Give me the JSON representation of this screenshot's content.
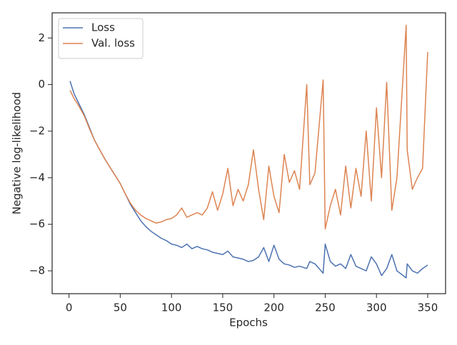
{
  "chart_data": {
    "type": "line",
    "xlabel": "Epochs",
    "ylabel": "Negative log-likelihood",
    "x": [
      1,
      5,
      10,
      15,
      20,
      25,
      30,
      35,
      40,
      45,
      50,
      55,
      60,
      65,
      70,
      75,
      80,
      85,
      90,
      95,
      100,
      105,
      110,
      115,
      120,
      125,
      130,
      135,
      140,
      145,
      150,
      155,
      160,
      165,
      170,
      175,
      180,
      185,
      190,
      195,
      200,
      205,
      210,
      215,
      220,
      225,
      232,
      235,
      240,
      248,
      250,
      255,
      260,
      265,
      270,
      275,
      280,
      285,
      290,
      295,
      300,
      305,
      310,
      315,
      320,
      329,
      330,
      335,
      340,
      345,
      350
    ],
    "series": [
      {
        "name": "Loss",
        "color": "#4c72b0",
        "values": [
          0.15,
          -0.4,
          -0.85,
          -1.3,
          -1.85,
          -2.4,
          -2.8,
          -3.2,
          -3.55,
          -3.9,
          -4.25,
          -4.7,
          -5.15,
          -5.5,
          -5.85,
          -6.1,
          -6.3,
          -6.45,
          -6.6,
          -6.7,
          -6.85,
          -6.9,
          -7.0,
          -6.85,
          -7.05,
          -6.95,
          -7.05,
          -7.1,
          -7.2,
          -7.25,
          -7.3,
          -7.15,
          -7.4,
          -7.45,
          -7.5,
          -7.6,
          -7.55,
          -7.4,
          -7.0,
          -7.6,
          -6.9,
          -7.5,
          -7.7,
          -7.75,
          -7.85,
          -7.8,
          -7.9,
          -7.6,
          -7.7,
          -8.1,
          -6.85,
          -7.6,
          -7.8,
          -7.7,
          -7.9,
          -7.3,
          -7.8,
          -7.9,
          -8.0,
          -7.4,
          -7.7,
          -8.2,
          -7.9,
          -7.3,
          -8.0,
          -8.3,
          -7.7,
          -8.0,
          -8.1,
          -7.9,
          -7.75
        ]
      },
      {
        "name": "Val. loss",
        "color": "#dd8452",
        "values": [
          -0.25,
          -0.6,
          -0.95,
          -1.35,
          -1.9,
          -2.4,
          -2.8,
          -3.2,
          -3.55,
          -3.9,
          -4.25,
          -4.7,
          -5.1,
          -5.4,
          -5.6,
          -5.75,
          -5.85,
          -5.95,
          -5.9,
          -5.8,
          -5.75,
          -5.6,
          -5.3,
          -5.7,
          -5.6,
          -5.5,
          -5.6,
          -5.3,
          -4.6,
          -5.4,
          -4.7,
          -3.6,
          -5.2,
          -4.5,
          -5.0,
          -4.3,
          -2.8,
          -4.5,
          -5.8,
          -3.5,
          -4.8,
          -5.5,
          -3.0,
          -4.2,
          -3.7,
          -4.5,
          0.0,
          -4.3,
          -3.8,
          0.2,
          -6.2,
          -5.2,
          -4.5,
          -5.6,
          -3.5,
          -5.3,
          -3.6,
          -4.8,
          -2.0,
          -5.0,
          -1.0,
          -4.0,
          0.1,
          -5.4,
          -4.0,
          2.55,
          -2.8,
          -4.5,
          -4.0,
          -3.6,
          1.4
        ]
      }
    ],
    "xlim": [
      -16.45,
      367.45
    ],
    "xticks": [
      0,
      50,
      100,
      150,
      200,
      250,
      300,
      350
    ],
    "ylim": [
      -8.98,
      3.08
    ],
    "yticks": [
      {
        "value": -8,
        "label": "−8"
      },
      {
        "value": -6,
        "label": "−6"
      },
      {
        "value": -4,
        "label": "−4"
      },
      {
        "value": -2,
        "label": "−2"
      },
      0,
      2
    ],
    "legend": "upper left",
    "grid": false
  }
}
